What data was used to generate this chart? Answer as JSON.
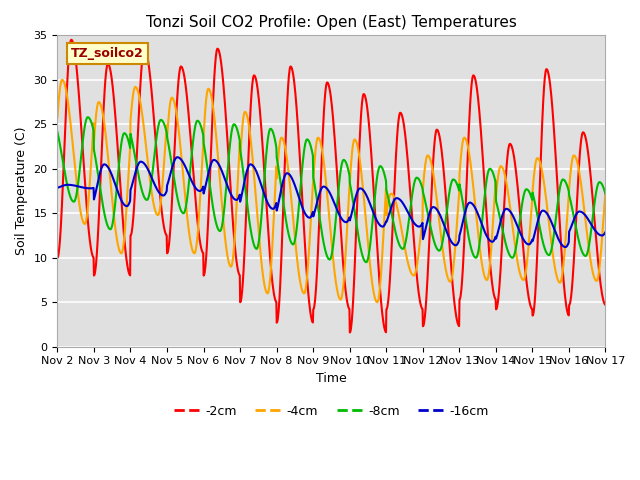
{
  "title": "Tonzi Soil CO2 Profile: Open (East) Temperatures",
  "xlabel": "Time",
  "ylabel": "Soil Temperature (C)",
  "ylim": [
    0,
    35
  ],
  "background_color": "#ffffff",
  "plot_bg_color": "#e0e0e0",
  "grid_color": "#ffffff",
  "legend_label": "TZ_soilco2",
  "series_labels": [
    "-2cm",
    "-4cm",
    "-8cm",
    "-16cm"
  ],
  "series_colors": [
    "#ff0000",
    "#ffa500",
    "#00bb00",
    "#0000cc"
  ],
  "line_width": 1.5,
  "x_tick_labels": [
    "Nov 2",
    "Nov 3",
    "Nov 4",
    "Nov 5",
    "Nov 6",
    "Nov 7",
    "Nov 8",
    "Nov 9",
    "Nov 10",
    "Nov 11",
    "Nov 12",
    "Nov 13",
    "Nov 14",
    "Nov 15",
    "Nov 16",
    "Nov 17"
  ],
  "num_days": 15,
  "points_per_day": 96,
  "depths": {
    "2cm": {
      "day_max": [
        34.5,
        31.8,
        33.5,
        31.5,
        33.5,
        30.5,
        31.5,
        29.7,
        28.4,
        26.3,
        24.4,
        30.5,
        22.8,
        31.2,
        24.1
      ],
      "day_min": [
        10.0,
        8.0,
        12.5,
        10.5,
        8.0,
        5.0,
        2.7,
        4.2,
        1.6,
        4.2,
        2.3,
        5.3,
        4.2,
        3.5,
        4.7
      ],
      "phase_shift": 0.0
    },
    "4cm": {
      "day_max": [
        30.0,
        27.5,
        29.2,
        28.0,
        29.0,
        26.4,
        23.5,
        23.5,
        23.3,
        17.2,
        21.5,
        23.5,
        20.3,
        21.2,
        21.5
      ],
      "day_min": [
        13.8,
        10.5,
        14.8,
        10.5,
        9.0,
        6.0,
        6.0,
        5.3,
        5.0,
        8.0,
        7.3,
        7.5,
        7.5,
        7.2,
        7.4
      ],
      "phase_shift": 0.25
    },
    "8cm": {
      "day_max": [
        25.8,
        24.0,
        25.5,
        25.4,
        25.0,
        24.5,
        23.3,
        21.0,
        20.3,
        19.0,
        18.8,
        20.0,
        17.7,
        18.8,
        18.5
      ],
      "day_min": [
        16.3,
        13.2,
        16.5,
        15.0,
        13.0,
        11.0,
        11.5,
        9.8,
        9.5,
        11.0,
        10.8,
        10.0,
        10.0,
        10.3,
        10.2
      ],
      "phase_shift": 0.55
    },
    "16cm": {
      "day_max": [
        18.2,
        20.5,
        20.8,
        21.3,
        21.0,
        20.5,
        19.5,
        18.0,
        17.8,
        16.7,
        15.7,
        16.2,
        15.5,
        15.3,
        15.2
      ],
      "day_min": [
        17.8,
        15.8,
        17.0,
        17.5,
        16.5,
        15.5,
        14.5,
        14.0,
        13.5,
        13.5,
        11.4,
        11.8,
        11.5,
        11.2,
        12.5
      ],
      "phase_shift": 1.1
    }
  }
}
